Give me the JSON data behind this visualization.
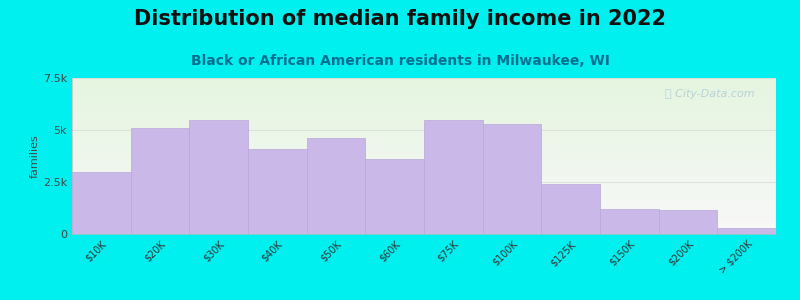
{
  "title": "Distribution of median family income in 2022",
  "subtitle": "Black or African American residents in Milwaukee, WI",
  "ylabel": "families",
  "categories": [
    "$10K",
    "$20K",
    "$30K",
    "$40K",
    "$50K",
    "$60K",
    "$75K",
    "$100K",
    "$125K",
    "$150K",
    "$200K",
    "> $200K"
  ],
  "values": [
    3000,
    5100,
    5500,
    4100,
    4600,
    3600,
    5500,
    5300,
    2400,
    1200,
    1150,
    300
  ],
  "bar_color": "#c9b8e8",
  "bar_edge_color": "#b8a8d8",
  "ylim": [
    0,
    7500
  ],
  "yticks": [
    0,
    2500,
    5000,
    7500
  ],
  "ytick_labels": [
    "0",
    "2.5k",
    "5k",
    "7.5k"
  ],
  "background_color": "#00f0f0",
  "plot_bg_top": "#e5f5e0",
  "plot_bg_bottom": "#f8f8f8",
  "title_fontsize": 15,
  "subtitle_fontsize": 10,
  "ylabel_fontsize": 8,
  "watermark_text": "ⓘ City-Data.com",
  "watermark_color": "#b0ccd4"
}
